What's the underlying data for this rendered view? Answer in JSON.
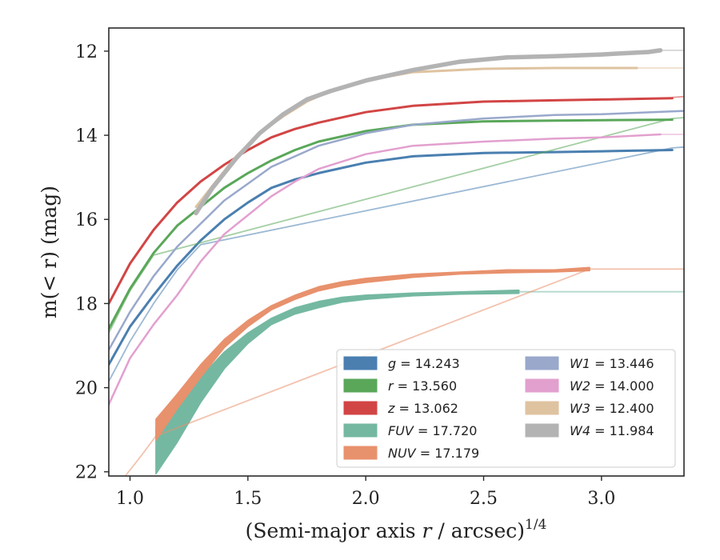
{
  "chart_data": {
    "type": "line",
    "title": "",
    "xlabel": "(Semi-major axis r / arcsec)",
    "xlabel_italic_part": "r",
    "xlabel_exponent": "1/4",
    "ylabel": "m(< r) (mag)",
    "xlim": [
      0.91,
      3.35
    ],
    "ylim": [
      22.1,
      11.45
    ],
    "y_inverted": true,
    "xticks": [
      1.0,
      1.5,
      2.0,
      2.5,
      3.0
    ],
    "xtick_labels": [
      "1.0",
      "1.5",
      "2.0",
      "2.5",
      "3.0"
    ],
    "yticks": [
      12,
      14,
      16,
      18,
      20,
      22
    ],
    "ytick_labels": [
      "12",
      "14",
      "16",
      "18",
      "20",
      "22"
    ],
    "grid": false,
    "legend_position": "lower-right",
    "series": [
      {
        "name": "g",
        "value_label": "14.243",
        "color": "#4a7fb0",
        "band_width": 3,
        "x": [
          0.91,
          1.0,
          1.1,
          1.2,
          1.3,
          1.4,
          1.5,
          1.6,
          1.7,
          1.8,
          2.0,
          2.2,
          2.5,
          2.8,
          3.0,
          3.3
        ],
        "y": [
          19.45,
          18.55,
          17.8,
          17.1,
          16.5,
          16.0,
          15.6,
          15.25,
          15.05,
          14.9,
          14.65,
          14.5,
          14.42,
          14.4,
          14.38,
          14.35
        ],
        "ext_x": [
          0.91,
          1.0,
          1.1,
          1.2,
          1.3,
          3.3,
          3.35
        ],
        "ext_y": [
          19.85,
          18.9,
          18.0,
          17.2,
          16.6,
          14.3,
          14.28
        ]
      },
      {
        "name": "r",
        "value_label": "13.560",
        "color": "#5aa75a",
        "band_width": 3,
        "x": [
          0.91,
          1.0,
          1.1,
          1.2,
          1.3,
          1.4,
          1.5,
          1.6,
          1.7,
          1.8,
          2.0,
          2.2,
          2.5,
          2.8,
          3.0,
          3.3
        ],
        "y": [
          18.6,
          17.65,
          16.8,
          16.15,
          15.7,
          15.25,
          14.9,
          14.6,
          14.35,
          14.15,
          13.9,
          13.75,
          13.67,
          13.65,
          13.64,
          13.63
        ],
        "ext_x": [
          0.91,
          1.0,
          1.1,
          3.3,
          3.35
        ],
        "ext_y": [
          18.7,
          17.7,
          16.85,
          13.6,
          13.58
        ]
      },
      {
        "name": "z",
        "value_label": "13.062",
        "color": "#d24545",
        "band_width": 3,
        "x": [
          0.91,
          1.0,
          1.1,
          1.2,
          1.3,
          1.4,
          1.5,
          1.6,
          1.7,
          1.8,
          2.0,
          2.2,
          2.5,
          2.8,
          3.0,
          3.3
        ],
        "y": [
          18.0,
          17.05,
          16.25,
          15.6,
          15.1,
          14.7,
          14.35,
          14.05,
          13.85,
          13.7,
          13.45,
          13.3,
          13.2,
          13.17,
          13.15,
          13.12
        ],
        "ext_x": [
          3.3,
          3.35
        ],
        "ext_y": [
          13.1,
          13.08
        ]
      },
      {
        "name": "FUV",
        "value_label": "17.720",
        "color": "#74b8a2",
        "x": [
          1.11,
          1.2,
          1.3,
          1.4,
          1.5,
          1.6,
          1.7,
          1.8,
          1.9,
          2.0,
          2.2,
          2.4,
          2.65
        ],
        "y_upper": [
          20.95,
          20.4,
          19.75,
          19.15,
          18.7,
          18.35,
          18.1,
          17.95,
          17.85,
          17.8,
          17.75,
          17.72,
          17.68
        ],
        "y_lower": [
          22.05,
          21.3,
          20.35,
          19.55,
          18.95,
          18.5,
          18.25,
          18.1,
          17.97,
          17.9,
          17.82,
          17.78,
          17.76
        ],
        "ext_x": [
          2.65,
          3.35
        ],
        "ext_y": [
          17.72,
          17.72
        ]
      },
      {
        "name": "NUV",
        "value_label": "17.179",
        "color": "#e8916d",
        "x": [
          1.11,
          1.2,
          1.3,
          1.4,
          1.5,
          1.6,
          1.7,
          1.8,
          1.9,
          2.0,
          2.2,
          2.4,
          2.6,
          2.8,
          2.95
        ],
        "y_upper": [
          20.75,
          20.15,
          19.45,
          18.85,
          18.4,
          18.05,
          17.8,
          17.6,
          17.48,
          17.4,
          17.3,
          17.25,
          17.2,
          17.2,
          17.14
        ],
        "y_lower": [
          21.25,
          20.5,
          19.75,
          19.05,
          18.55,
          18.15,
          17.9,
          17.7,
          17.58,
          17.5,
          17.38,
          17.3,
          17.27,
          17.25,
          17.22
        ],
        "ext_x": [
          0.98,
          1.05,
          1.11,
          2.95,
          3.35
        ],
        "ext_y": [
          22.1,
          21.6,
          21.15,
          17.18,
          17.18
        ]
      },
      {
        "name": "W1",
        "value_label": "13.446",
        "color": "#99a8cb",
        "band_width": 2.5,
        "x": [
          0.91,
          1.0,
          1.1,
          1.2,
          1.3,
          1.4,
          1.5,
          1.6,
          1.7,
          1.8,
          2.0,
          2.2,
          2.5,
          2.8,
          3.0,
          3.35
        ],
        "y": [
          19.1,
          18.2,
          17.35,
          16.65,
          16.1,
          15.55,
          15.15,
          14.75,
          14.5,
          14.25,
          13.95,
          13.75,
          13.6,
          13.52,
          13.5,
          13.42
        ],
        "ext_x": [],
        "ext_y": []
      },
      {
        "name": "W2",
        "value_label": "14.000",
        "color": "#e2a0cf",
        "band_width": 2.5,
        "x": [
          0.91,
          1.0,
          1.1,
          1.2,
          1.3,
          1.4,
          1.5,
          1.6,
          1.7,
          1.8,
          2.0,
          2.2,
          2.5,
          2.8,
          3.0,
          3.25
        ],
        "y": [
          20.4,
          19.3,
          18.5,
          17.8,
          17.0,
          16.35,
          15.9,
          15.45,
          15.1,
          14.8,
          14.45,
          14.25,
          14.15,
          14.08,
          14.05,
          13.98
        ],
        "ext_x": [
          3.25,
          3.35
        ],
        "ext_y": [
          13.98,
          13.98
        ]
      },
      {
        "name": "W3",
        "value_label": "12.400",
        "color": "#dfc3a0",
        "band_width": 3,
        "x": [
          1.28,
          1.35,
          1.45,
          1.55,
          1.65,
          1.75,
          1.85,
          2.0,
          2.2,
          2.5,
          2.8,
          3.15
        ],
        "y": [
          15.7,
          15.2,
          14.5,
          13.95,
          13.55,
          13.2,
          12.95,
          12.7,
          12.5,
          12.42,
          12.4,
          12.4
        ],
        "ext_x": [
          3.15,
          3.35
        ],
        "ext_y": [
          12.4,
          12.4
        ]
      },
      {
        "name": "W4",
        "value_label": "11.984",
        "color": "#b3b3b3",
        "band_width": 5.5,
        "x": [
          1.28,
          1.35,
          1.45,
          1.55,
          1.65,
          1.75,
          1.85,
          2.0,
          2.2,
          2.4,
          2.6,
          2.8,
          3.0,
          3.1,
          3.2,
          3.25
        ],
        "y": [
          15.85,
          15.25,
          14.55,
          13.95,
          13.5,
          13.15,
          12.95,
          12.7,
          12.45,
          12.25,
          12.15,
          12.12,
          12.08,
          12.05,
          12.02,
          11.98
        ],
        "ext_x": [
          3.25,
          3.35
        ],
        "ext_y": [
          11.98,
          11.98
        ]
      }
    ]
  }
}
